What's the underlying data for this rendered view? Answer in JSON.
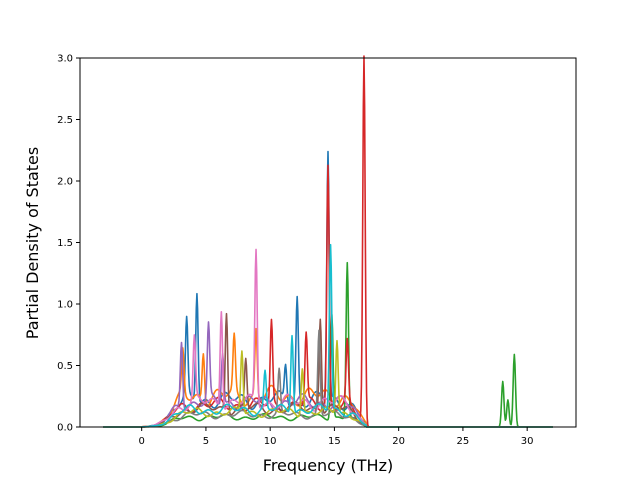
{
  "chart_data": {
    "type": "line",
    "title": "",
    "xlabel": "Frequency (THz)",
    "ylabel": "Partial Density of States",
    "xlim": [
      -4.8,
      33.8
    ],
    "ylim": [
      0.0,
      3.0
    ],
    "xticks": [
      0,
      5,
      10,
      15,
      20,
      25,
      30
    ],
    "xtick_labels": [
      "0",
      "5",
      "10",
      "15",
      "20",
      "25",
      "30"
    ],
    "yticks": [
      0.0,
      0.5,
      1.0,
      1.5,
      2.0,
      2.5,
      3.0
    ],
    "ytick_labels": [
      "0.0",
      "0.5",
      "1.0",
      "1.5",
      "2.0",
      "2.5",
      "3.0"
    ],
    "x_range": [
      -3.0,
      32.0
    ],
    "grid": false,
    "legend": "none",
    "series": [
      {
        "color": "#1f77b4",
        "base": 0.22,
        "peaks": [
          [
            4.3,
            0.9
          ],
          [
            3.5,
            0.62
          ],
          [
            12.1,
            0.84
          ],
          [
            14.5,
            2.02
          ],
          [
            11.2,
            0.3
          ]
        ]
      },
      {
        "color": "#ff7f0e",
        "base": 0.25,
        "peaks": [
          [
            4.8,
            0.4
          ],
          [
            8.9,
            0.55
          ],
          [
            7.2,
            0.45
          ],
          [
            3.2,
            0.36
          ]
        ]
      },
      {
        "color": "#2ca02c",
        "base": 0.08,
        "peaks": [
          [
            14.8,
            0.85
          ],
          [
            16.0,
            1.27
          ],
          [
            28.1,
            0.37
          ],
          [
            29.0,
            0.59
          ],
          [
            28.5,
            0.22
          ]
        ]
      },
      {
        "color": "#d62728",
        "base": 0.18,
        "peaks": [
          [
            14.5,
            1.95
          ],
          [
            17.3,
            2.98
          ],
          [
            10.1,
            0.67
          ],
          [
            12.8,
            0.56
          ],
          [
            16.0,
            0.5
          ]
        ]
      },
      {
        "color": "#9467bd",
        "base": 0.2,
        "peaks": [
          [
            3.1,
            0.55
          ],
          [
            5.2,
            0.6
          ],
          [
            6.3,
            0.42
          ]
        ]
      },
      {
        "color": "#8c564b",
        "base": 0.15,
        "peaks": [
          [
            6.6,
            0.8
          ],
          [
            13.9,
            0.77
          ],
          [
            8.1,
            0.4
          ]
        ]
      },
      {
        "color": "#e377c2",
        "base": 0.2,
        "peaks": [
          [
            8.9,
            1.25
          ],
          [
            6.2,
            0.8
          ],
          [
            4.1,
            0.5
          ]
        ]
      },
      {
        "color": "#7f7f7f",
        "base": 0.1,
        "peaks": [
          [
            13.8,
            0.68
          ],
          [
            10.7,
            0.35
          ]
        ]
      },
      {
        "color": "#bcbd22",
        "base": 0.12,
        "peaks": [
          [
            7.8,
            0.5
          ],
          [
            15.2,
            0.6
          ],
          [
            12.5,
            0.38
          ]
        ]
      },
      {
        "color": "#17becf",
        "base": 0.14,
        "peaks": [
          [
            14.7,
            1.35
          ],
          [
            11.7,
            0.64
          ],
          [
            9.6,
            0.3
          ]
        ]
      }
    ]
  }
}
